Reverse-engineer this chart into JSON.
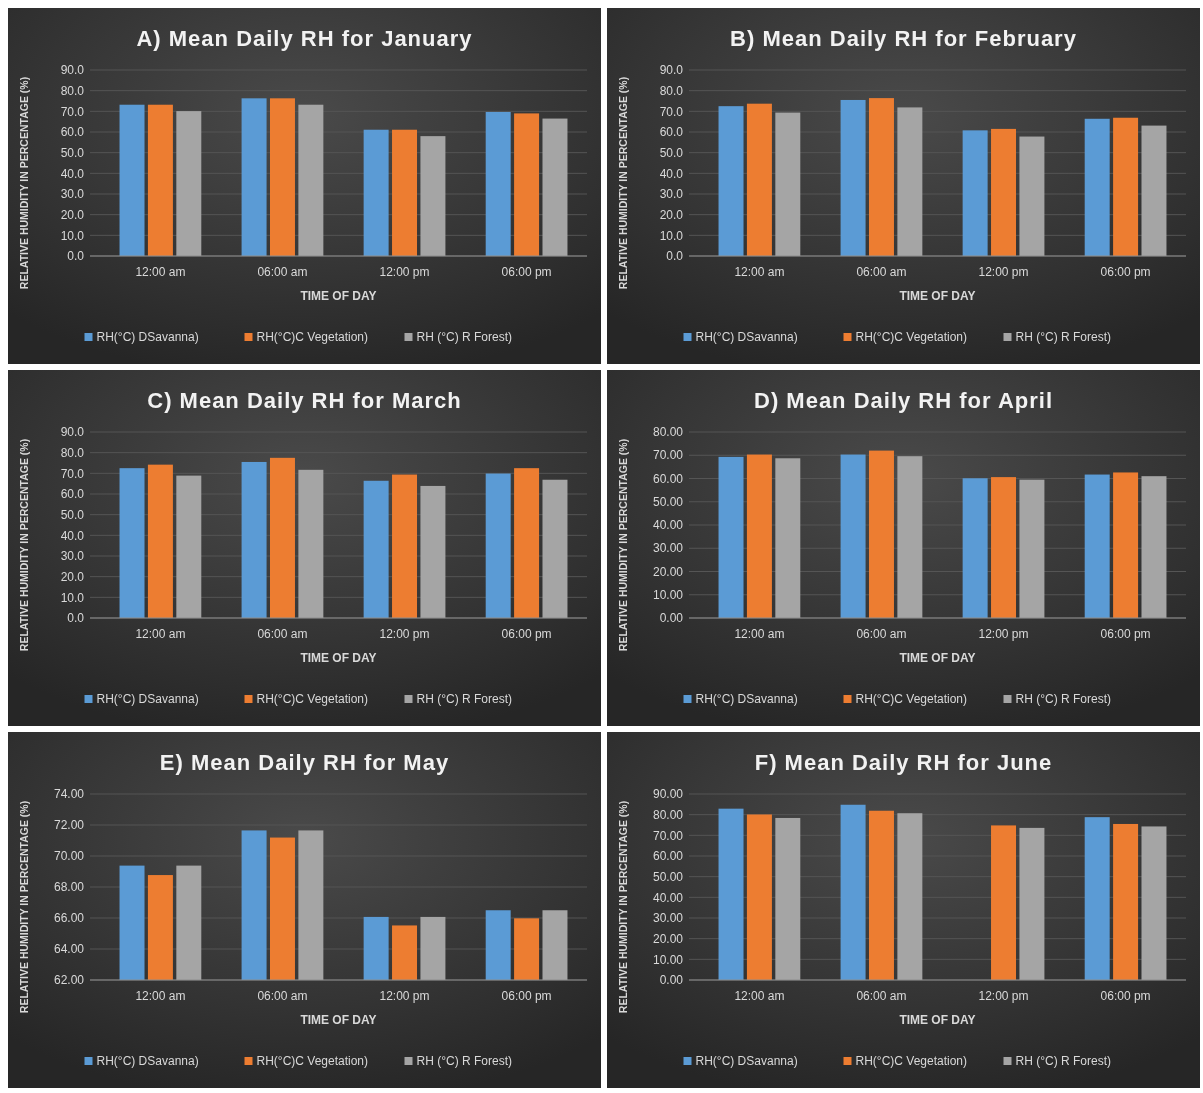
{
  "chart_data": [
    {
      "type": "bar",
      "title": "A) Mean Daily RH for January",
      "xlabel": "TIME OF DAY",
      "ylabel": "RELATIVE HUMIDITY IN PERCENTAGE (%)",
      "categories": [
        "12:00 am",
        "06:00 am",
        "12:00 pm",
        "06:00 pm"
      ],
      "series": [
        {
          "name": "RH(°C) DSavanna)",
          "color": "#5b9bd5",
          "values": [
            73.2,
            76.3,
            61.1,
            69.7
          ]
        },
        {
          "name": "RH(°C)C Vegetation)",
          "color": "#ed7d31",
          "values": [
            73.2,
            76.3,
            61.1,
            69.0
          ]
        },
        {
          "name": "RH (°C) R Forest)",
          "color": "#a5a5a5",
          "values": [
            70.1,
            73.2,
            58.0,
            66.5
          ]
        }
      ],
      "ylim": [
        0,
        90
      ],
      "yticks": [
        {
          "value": 0,
          "label": "0.0"
        },
        {
          "value": 10,
          "label": "10.0"
        },
        {
          "value": 20,
          "label": "20.0"
        },
        {
          "value": 30,
          "label": "30.0"
        },
        {
          "value": 40,
          "label": "40.0"
        },
        {
          "value": 50,
          "label": "50.0"
        },
        {
          "value": 60,
          "label": "60.0"
        },
        {
          "value": 70,
          "label": "70.0"
        },
        {
          "value": 80,
          "label": "80.0"
        },
        {
          "value": 90,
          "label": "90.0"
        }
      ],
      "grid": "y",
      "legend": "bottom"
    },
    {
      "type": "bar",
      "title": "B) Mean Daily RH for February",
      "xlabel": "TIME OF DAY",
      "ylabel": "RELATIVE HUMIDITY IN PERCENTAGE (%)",
      "categories": [
        "12:00 am",
        "06:00 am",
        "12:00 pm",
        "06:00 pm"
      ],
      "series": [
        {
          "name": "RH(°C) DSavanna)",
          "color": "#5b9bd5",
          "values": [
            72.5,
            75.5,
            60.8,
            66.4
          ]
        },
        {
          "name": "RH(°C)C Vegetation)",
          "color": "#ed7d31",
          "values": [
            73.7,
            76.4,
            61.5,
            66.9
          ]
        },
        {
          "name": "RH (°C) R Forest)",
          "color": "#a5a5a5",
          "values": [
            69.4,
            71.9,
            57.8,
            63.1
          ]
        }
      ],
      "ylim": [
        0,
        90
      ],
      "yticks": [
        {
          "value": 0,
          "label": "0.0"
        },
        {
          "value": 10,
          "label": "10.0"
        },
        {
          "value": 20,
          "label": "20.0"
        },
        {
          "value": 30,
          "label": "30.0"
        },
        {
          "value": 40,
          "label": "40.0"
        },
        {
          "value": 50,
          "label": "50.0"
        },
        {
          "value": 60,
          "label": "60.0"
        },
        {
          "value": 70,
          "label": "70.0"
        },
        {
          "value": 80,
          "label": "80.0"
        },
        {
          "value": 90,
          "label": "90.0"
        }
      ],
      "grid": "y",
      "legend": "bottom"
    },
    {
      "type": "bar",
      "title": "C) Mean Daily RH for March",
      "xlabel": "TIME OF DAY",
      "ylabel": "RELATIVE HUMIDITY IN PERCENTAGE (%)",
      "categories": [
        "12:00 am",
        "06:00 am",
        "12:00 pm",
        "06:00 pm"
      ],
      "series": [
        {
          "name": "RH(°C) DSavanna)",
          "color": "#5b9bd5",
          "values": [
            72.5,
            75.5,
            66.4,
            69.9
          ]
        },
        {
          "name": "RH(°C)C Vegetation)",
          "color": "#ed7d31",
          "values": [
            74.2,
            77.5,
            69.4,
            72.5
          ]
        },
        {
          "name": "RH (°C) R Forest)",
          "color": "#a5a5a5",
          "values": [
            68.9,
            71.7,
            63.9,
            66.9
          ]
        }
      ],
      "ylim": [
        0,
        90
      ],
      "yticks": [
        {
          "value": 0,
          "label": "0.0"
        },
        {
          "value": 10,
          "label": "10.0"
        },
        {
          "value": 20,
          "label": "20.0"
        },
        {
          "value": 30,
          "label": "30.0"
        },
        {
          "value": 40,
          "label": "40.0"
        },
        {
          "value": 50,
          "label": "50.0"
        },
        {
          "value": 60,
          "label": "60.0"
        },
        {
          "value": 70,
          "label": "70.0"
        },
        {
          "value": 80,
          "label": "80.0"
        },
        {
          "value": 90,
          "label": "90.0"
        }
      ],
      "grid": "y",
      "legend": "bottom"
    },
    {
      "type": "bar",
      "title": "D) Mean Daily RH for April",
      "xlabel": "TIME OF DAY",
      "ylabel": "RELATIVE HUMIDITY IN PERCENTAGE (%)",
      "categories": [
        "12:00 am",
        "06:00 am",
        "12:00 pm",
        "06:00 pm"
      ],
      "series": [
        {
          "name": "RH(°C) DSavanna)",
          "color": "#5b9bd5",
          "values": [
            69.3,
            70.3,
            60.1,
            61.7
          ]
        },
        {
          "name": "RH(°C)C Vegetation)",
          "color": "#ed7d31",
          "values": [
            70.3,
            72.0,
            60.6,
            62.6
          ]
        },
        {
          "name": "RH (°C) R Forest)",
          "color": "#a5a5a5",
          "values": [
            68.7,
            69.6,
            59.5,
            61.0
          ]
        }
      ],
      "ylim": [
        0,
        80
      ],
      "yticks": [
        {
          "value": 0,
          "label": "0.00"
        },
        {
          "value": 10,
          "label": "10.00"
        },
        {
          "value": 20,
          "label": "20.00"
        },
        {
          "value": 30,
          "label": "30.00"
        },
        {
          "value": 40,
          "label": "40.00"
        },
        {
          "value": 50,
          "label": "50.00"
        },
        {
          "value": 60,
          "label": "60.00"
        },
        {
          "value": 70,
          "label": "70.00"
        },
        {
          "value": 80,
          "label": "80.00"
        }
      ],
      "grid": "y",
      "legend": "bottom"
    },
    {
      "type": "bar",
      "title": "E) Mean Daily RH for May",
      "xlabel": "TIME OF DAY",
      "ylabel": "RELATIVE HUMIDITY IN PERCENTAGE (%)",
      "categories": [
        "12:00 am",
        "06:00 am",
        "12:00 pm",
        "06:00 pm"
      ],
      "series": [
        {
          "name": "RH(°C) DSavanna)",
          "color": "#5b9bd5",
          "values": [
            69.38,
            71.65,
            66.07,
            66.5
          ]
        },
        {
          "name": "RH(°C)C Vegetation)",
          "color": "#ed7d31",
          "values": [
            68.77,
            71.19,
            65.52,
            65.98
          ]
        },
        {
          "name": "RH (°C) R Forest)",
          "color": "#a5a5a5",
          "values": [
            69.38,
            71.65,
            66.07,
            66.5
          ]
        }
      ],
      "ylim": [
        62,
        74
      ],
      "yticks": [
        {
          "value": 62,
          "label": "62.00"
        },
        {
          "value": 64,
          "label": "64.00"
        },
        {
          "value": 66,
          "label": "66.00"
        },
        {
          "value": 68,
          "label": "68.00"
        },
        {
          "value": 70,
          "label": "70.00"
        },
        {
          "value": 72,
          "label": "72.00"
        },
        {
          "value": 74,
          "label": "74.00"
        }
      ],
      "grid": "y",
      "legend": "bottom"
    },
    {
      "type": "bar",
      "title": "F) Mean Daily RH for June",
      "xlabel": "TIME OF DAY",
      "ylabel": "RELATIVE HUMIDITY IN PERCENTAGE (%)",
      "categories": [
        "12:00 am",
        "06:00 am",
        "12:00 pm",
        "06:00 pm"
      ],
      "series": [
        {
          "name": "RH(°C) DSavanna)",
          "color": "#5b9bd5",
          "values": [
            82.9,
            84.8,
            null,
            78.8
          ]
        },
        {
          "name": "RH(°C)C Vegetation)",
          "color": "#ed7d31",
          "values": [
            80.1,
            81.9,
            74.8,
            75.5
          ]
        },
        {
          "name": "RH (°C) R Forest)",
          "color": "#a5a5a5",
          "values": [
            78.4,
            80.7,
            73.6,
            74.3
          ]
        }
      ],
      "ylim": [
        0,
        90
      ],
      "yticks": [
        {
          "value": 0,
          "label": "0.00"
        },
        {
          "value": 10,
          "label": "10.00"
        },
        {
          "value": 20,
          "label": "20.00"
        },
        {
          "value": 30,
          "label": "30.00"
        },
        {
          "value": 40,
          "label": "40.00"
        },
        {
          "value": 50,
          "label": "50.00"
        },
        {
          "value": 60,
          "label": "60.00"
        },
        {
          "value": 70,
          "label": "70.00"
        },
        {
          "value": 80,
          "label": "80.00"
        },
        {
          "value": 90,
          "label": "90.00"
        }
      ],
      "grid": "y",
      "legend": "bottom"
    }
  ]
}
